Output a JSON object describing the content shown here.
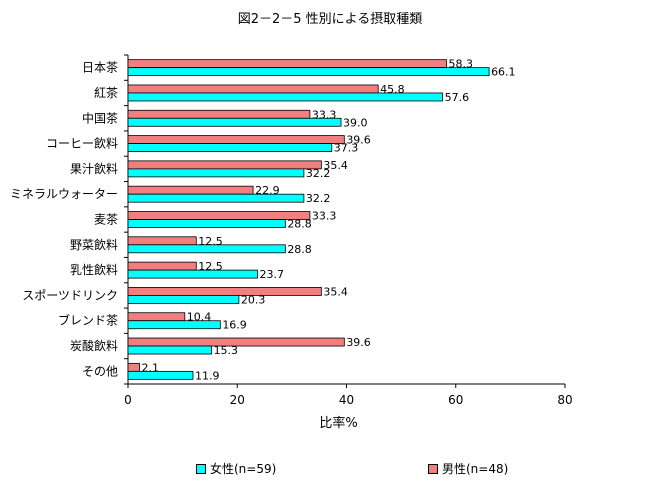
{
  "chart_data": {
    "type": "bar",
    "orientation": "horizontal",
    "title": "図2－2－5 性別による摂取種類",
    "xlabel": "比率%",
    "ylabel": "",
    "xlim": [
      0,
      80
    ],
    "xticks": [
      "0",
      "20",
      "40",
      "60",
      "80"
    ],
    "grid": false,
    "legend_position": "bottom",
    "categories": [
      "日本茶",
      "紅茶",
      "中国茶",
      "コーヒー飲料",
      "果汁飲料",
      "ミネラルウォーター",
      "麦茶",
      "野菜飲料",
      "乳性飲料",
      "スポーツドリンク",
      "ブレンド茶",
      "炭酸飲料",
      "その他"
    ],
    "series": [
      {
        "name": "男性(n=48)",
        "color": "#F08080",
        "values": [
          58.3,
          45.8,
          33.3,
          39.6,
          35.4,
          22.9,
          33.3,
          12.5,
          12.5,
          35.4,
          10.4,
          39.6,
          2.1
        ],
        "labels": [
          "58.3",
          "45.8",
          "33.3",
          "39.6",
          "35.4",
          "22.9",
          "33.3",
          "12.5",
          "12.5",
          "35.4",
          "10.4",
          "39.6",
          "2.1"
        ]
      },
      {
        "name": "女性(n=59)",
        "color": "#00FFFF",
        "values": [
          66.1,
          57.6,
          39.0,
          37.3,
          32.2,
          32.2,
          28.8,
          28.8,
          23.7,
          20.3,
          16.9,
          15.3,
          11.9
        ],
        "labels": [
          "66.1",
          "57.6",
          "39.0",
          "37.3",
          "32.2",
          "32.2",
          "28.8",
          "28.8",
          "23.7",
          "20.3",
          "16.9",
          "15.3",
          "11.9"
        ]
      }
    ]
  }
}
